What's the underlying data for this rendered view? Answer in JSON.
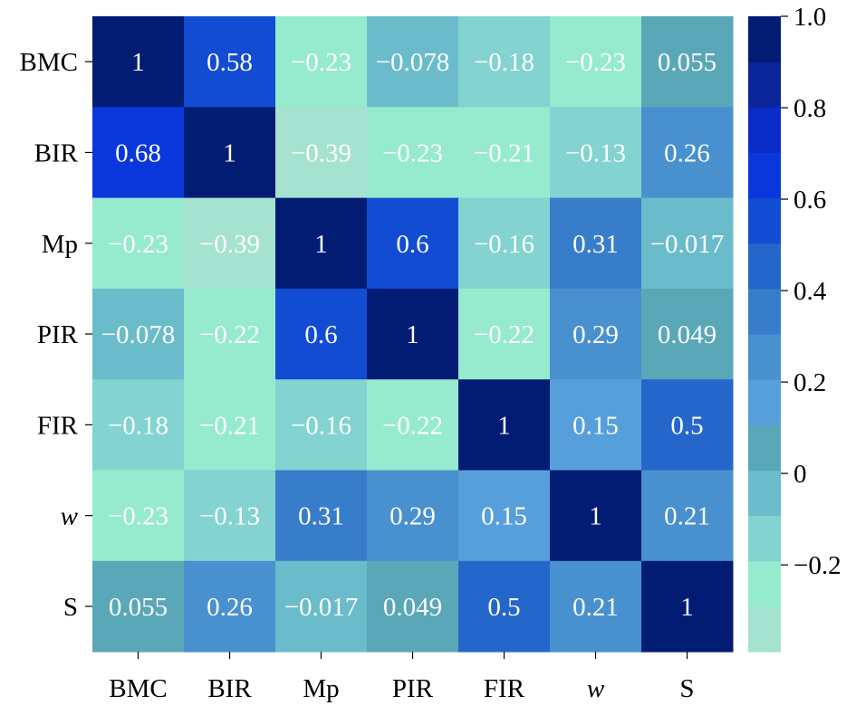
{
  "chart_data": {
    "type": "heatmap",
    "title": "",
    "xlabel": "",
    "ylabel": "",
    "row_labels": [
      "BMC",
      "BIR",
      "Mp",
      "PIR",
      "FIR",
      "w",
      "S"
    ],
    "col_labels": [
      "BMC",
      "BIR",
      "Mp",
      "PIR",
      "FIR",
      "w",
      "S"
    ],
    "italic_labels": [
      "w"
    ],
    "values": [
      [
        1,
        0.58,
        -0.23,
        -0.078,
        -0.18,
        -0.23,
        0.055
      ],
      [
        0.68,
        1,
        -0.39,
        -0.23,
        -0.21,
        -0.13,
        0.26
      ],
      [
        -0.23,
        -0.39,
        1,
        0.6,
        -0.16,
        0.31,
        -0.017
      ],
      [
        -0.078,
        -0.22,
        0.6,
        1,
        -0.22,
        0.29,
        0.049
      ],
      [
        -0.18,
        -0.21,
        -0.16,
        -0.22,
        1,
        0.15,
        0.5
      ],
      [
        -0.23,
        -0.13,
        0.31,
        0.29,
        0.15,
        1,
        0.21
      ],
      [
        0.055,
        0.26,
        -0.017,
        0.049,
        0.5,
        0.21,
        1
      ]
    ],
    "value_labels": [
      [
        "1",
        "0.58",
        "−0.23",
        "−0.078",
        "−0.18",
        "−0.23",
        "0.055"
      ],
      [
        "0.68",
        "1",
        "−0.39",
        "−0.23",
        "−0.21",
        "−0.13",
        "0.26"
      ],
      [
        "−0.23",
        "−0.39",
        "1",
        "0.6",
        "−0.16",
        "0.31",
        "−0.017"
      ],
      [
        "−0.078",
        "−0.22",
        "0.6",
        "1",
        "−0.22",
        "0.29",
        "0.049"
      ],
      [
        "−0.18",
        "−0.21",
        "−0.16",
        "−0.22",
        "1",
        "0.15",
        "0.5"
      ],
      [
        "−0.23",
        "−0.13",
        "0.31",
        "0.29",
        "0.15",
        "1",
        "0.21"
      ],
      [
        "0.055",
        "0.26",
        "−0.017",
        "0.049",
        "0.5",
        "0.21",
        "1"
      ]
    ],
    "colorbar": {
      "range": [
        -0.39,
        1.0
      ],
      "ticks": [
        1.0,
        0.8,
        0.6,
        0.4,
        0.2,
        0,
        -0.2
      ],
      "tick_labels": [
        "1.0",
        "0.8",
        "0.6",
        "0.4",
        "0.2",
        "0",
        "−0.2"
      ],
      "bands": 14
    },
    "colormap": [
      {
        "v": -0.39,
        "c": "#acdccf"
      },
      {
        "v": -0.25,
        "c": "#98ecd0"
      },
      {
        "v": -0.17,
        "c": "#86d8bf"
      },
      {
        "v": -0.12,
        "c": "#80d0de"
      },
      {
        "v": -0.05,
        "c": "#6cbecc"
      },
      {
        "v": 0.05,
        "c": "#5aa8b4"
      },
      {
        "v": 0.15,
        "c": "#58a0dc"
      },
      {
        "v": 0.3,
        "c": "#4289c8"
      },
      {
        "v": 0.5,
        "c": "#1c5ccc"
      },
      {
        "v": 0.6,
        "c": "#0a3ed8"
      },
      {
        "v": 0.7,
        "c": "#0830e0"
      },
      {
        "v": 0.85,
        "c": "#0a249a"
      },
      {
        "v": 1.0,
        "c": "#001860"
      }
    ],
    "annotation_color": "#ffffff",
    "grid": false,
    "legend": "colorbar-right"
  }
}
